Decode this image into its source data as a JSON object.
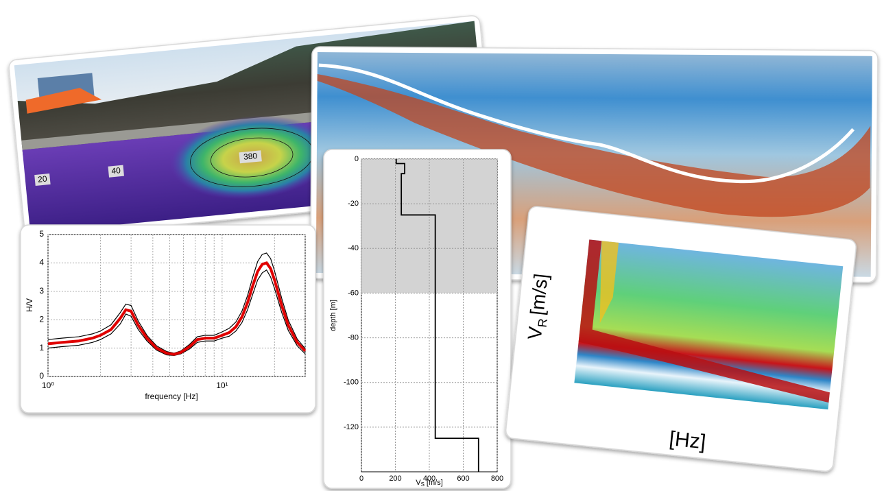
{
  "photo": {
    "contour_labels": [
      "20",
      "40",
      "380"
    ]
  },
  "chart_data": [
    {
      "type": "line",
      "xlabel": "frequency [Hz]",
      "ylabel": "H/V",
      "log_x": true,
      "grid": true,
      "xlim": [
        1,
        30
      ],
      "ylim": [
        0,
        5
      ],
      "xticks": [
        {
          "value": 1,
          "label": "10⁰"
        },
        {
          "value": 10,
          "label": "10¹"
        }
      ],
      "minor_xticks": [
        2,
        3,
        4,
        5,
        6,
        7,
        8,
        9,
        20,
        30
      ],
      "yticks": [
        0,
        1,
        2,
        3,
        4,
        5
      ],
      "x": [
        1,
        1.2,
        1.5,
        1.8,
        2,
        2.3,
        2.6,
        2.8,
        3,
        3.3,
        3.7,
        4.2,
        4.8,
        5.3,
        5.8,
        6.5,
        7.2,
        8,
        9,
        10,
        11,
        12,
        13,
        14,
        15,
        16,
        17,
        18,
        19,
        20,
        22,
        24,
        27,
        30
      ],
      "series": [
        {
          "color": "#000000",
          "values": [
            1.3,
            1.35,
            1.4,
            1.5,
            1.6,
            1.82,
            2.25,
            2.55,
            2.5,
            1.95,
            1.45,
            1.08,
            0.88,
            0.82,
            0.9,
            1.13,
            1.4,
            1.45,
            1.45,
            1.57,
            1.7,
            1.92,
            2.3,
            2.85,
            3.5,
            4.05,
            4.3,
            4.35,
            4.15,
            3.72,
            2.75,
            1.98,
            1.32,
            0.98
          ]
        },
        {
          "color": "#000000",
          "values": [
            1.0,
            1.05,
            1.1,
            1.2,
            1.3,
            1.5,
            1.85,
            2.2,
            2.12,
            1.65,
            1.25,
            0.93,
            0.76,
            0.74,
            0.8,
            0.97,
            1.2,
            1.25,
            1.25,
            1.35,
            1.42,
            1.6,
            1.9,
            2.35,
            2.9,
            3.4,
            3.65,
            3.75,
            3.5,
            3.1,
            2.25,
            1.62,
            1.08,
            0.8
          ]
        },
        {
          "color": "#e00000",
          "values": [
            1.15,
            1.2,
            1.25,
            1.35,
            1.45,
            1.65,
            2.05,
            2.35,
            2.3,
            1.8,
            1.35,
            1.0,
            0.82,
            0.78,
            0.85,
            1.05,
            1.3,
            1.35,
            1.35,
            1.45,
            1.55,
            1.75,
            2.1,
            2.6,
            3.2,
            3.7,
            3.95,
            4.0,
            3.8,
            3.4,
            2.5,
            1.8,
            1.2,
            0.9
          ]
        }
      ]
    },
    {
      "type": "line",
      "ylabel": "depth [m]",
      "xlabel_main": "V",
      "xlabel_sub": "S",
      "xlabel_unit": "[m/s]",
      "grid": true,
      "xlim": [
        0,
        800
      ],
      "ylim": [
        -140,
        0
      ],
      "shaded_ylim": [
        -60,
        0
      ],
      "xticks": [
        0,
        200,
        400,
        600,
        800
      ],
      "yticks": [
        0,
        -20,
        -40,
        -60,
        -80,
        -100,
        -120
      ],
      "x": [
        205,
        205,
        255,
        255,
        235,
        235,
        435,
        435,
        690,
        690
      ],
      "series": [
        {
          "color": "#000000",
          "values": [
            0,
            -2,
            -2,
            -6.5,
            -6.5,
            -25,
            -25,
            -125,
            -125,
            -140
          ]
        }
      ]
    },
    {
      "type": "heatmap",
      "ylabel_main": "V",
      "ylabel_sub": "R",
      "ylabel_unit": "[m/s]",
      "xlabel": "[Hz]",
      "grid": true,
      "xlim": [
        6,
        50
      ],
      "ylim": [
        50,
        350
      ],
      "xticks": [
        10,
        20,
        30,
        40,
        50
      ],
      "yticks": [
        50,
        150,
        250,
        350
      ]
    }
  ]
}
